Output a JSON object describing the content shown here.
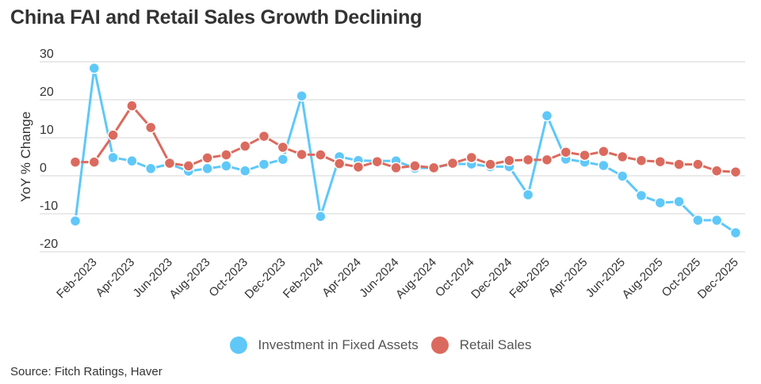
{
  "title": "China FAI and Retail Sales Growth Declining",
  "source": "Source: Fitch Ratings, Haver",
  "colors": {
    "fai": "#5FC8F8",
    "retail": "#DB6A5E",
    "grid": "#DDDDDD"
  },
  "legend": [
    {
      "label": "Investment in Fixed Assets",
      "color": "#5FC8F8"
    },
    {
      "label": "Retail Sales",
      "color": "#DB6A5E"
    }
  ],
  "chart_data": {
    "type": "line",
    "title": "China FAI and Retail Sales Growth Declining",
    "xlabel": "",
    "ylabel": "YoY % Change",
    "ylim": [
      -20,
      30
    ],
    "yticks": [
      30,
      20,
      10,
      0,
      -10,
      -20
    ],
    "grid": true,
    "legend_position": "bottom",
    "x": [
      "Jan-2023",
      "Feb-2023",
      "Mar-2023",
      "Apr-2023",
      "May-2023",
      "Jun-2023",
      "Jul-2023",
      "Aug-2023",
      "Sep-2023",
      "Oct-2023",
      "Nov-2023",
      "Dec-2023",
      "Jan-2024",
      "Feb-2024",
      "Mar-2024",
      "Apr-2024",
      "May-2024",
      "Jun-2024",
      "Jul-2024",
      "Aug-2024",
      "Sep-2024",
      "Oct-2024",
      "Nov-2024",
      "Dec-2024",
      "Jan-2025",
      "Feb-2025",
      "Mar-2025",
      "Apr-2025",
      "May-2025",
      "Jun-2025",
      "Jul-2025",
      "Aug-2025",
      "Sep-2025",
      "Oct-2025",
      "Nov-2025",
      "Dec-2025"
    ],
    "xtick_labels": [
      "Feb-2023",
      "Apr-2023",
      "Jun-2023",
      "Aug-2023",
      "Oct-2023",
      "Dec-2023",
      "Feb-2024",
      "Apr-2024",
      "Jun-2024",
      "Aug-2024",
      "Oct-2024",
      "Dec-2024",
      "Feb-2025",
      "Apr-2025",
      "Jun-2025",
      "Aug-2025",
      "Oct-2025",
      "Dec-2025"
    ],
    "series": [
      {
        "name": "Investment in Fixed Assets",
        "values": [
          -11.9,
          28.3,
          4.8,
          3.9,
          1.9,
          3.1,
          1.2,
          1.9,
          2.6,
          1.3,
          3.0,
          4.3,
          21.0,
          -10.7,
          5.0,
          4.0,
          3.9,
          3.9,
          2.0,
          2.1,
          3.1,
          3.1,
          2.4,
          2.4,
          -5.0,
          15.8,
          4.4,
          3.6,
          2.7,
          -0.1,
          -5.2,
          -7.1,
          -6.8,
          -11.7,
          -11.7,
          -15.0
        ]
      },
      {
        "name": "Retail Sales",
        "values": [
          3.6,
          3.6,
          10.7,
          18.4,
          12.7,
          3.3,
          2.6,
          4.7,
          5.5,
          7.8,
          10.4,
          7.5,
          5.6,
          5.5,
          3.2,
          2.3,
          3.7,
          2.1,
          2.6,
          2.1,
          3.3,
          4.8,
          3.0,
          4.0,
          4.2,
          4.2,
          6.2,
          5.4,
          6.4,
          5.0,
          4.0,
          3.7,
          3.0,
          3.0,
          1.3,
          1.0
        ]
      }
    ]
  }
}
